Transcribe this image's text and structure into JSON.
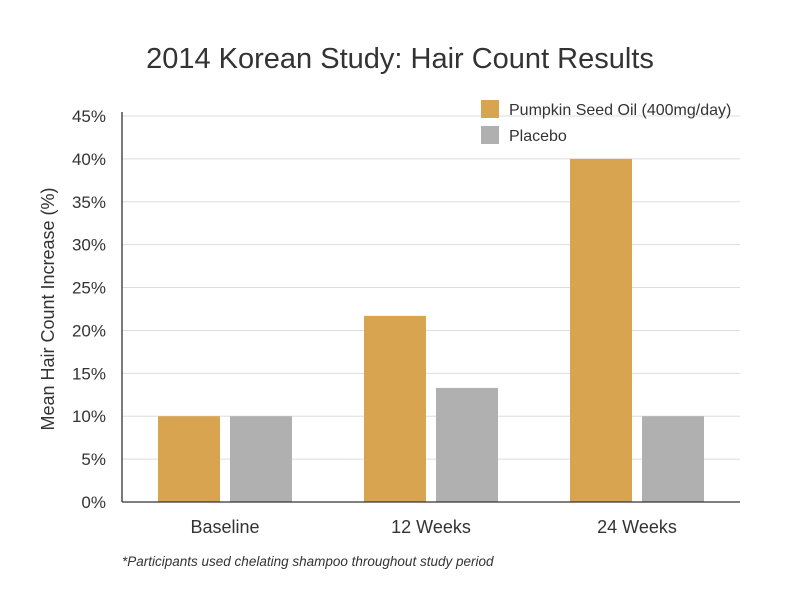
{
  "chart_data": {
    "type": "bar",
    "title": "2014 Korean Study: Hair Count Results",
    "xlabel": "",
    "ylabel": "Mean Hair Count Increase (%)",
    "categories": [
      "Baseline",
      "12 Weeks",
      "24 Weeks"
    ],
    "series": [
      {
        "name": "Pumpkin Seed Oil (400mg/day)",
        "values": [
          10,
          21.7,
          40
        ],
        "color": "#D9A44F"
      },
      {
        "name": "Placebo",
        "values": [
          10,
          13.3,
          10
        ],
        "color": "#B0B0B0"
      }
    ],
    "ylim": [
      0,
      45
    ],
    "yticks": [
      0,
      5,
      10,
      15,
      20,
      25,
      30,
      35,
      40,
      45
    ],
    "ytick_labels": [
      "0%",
      "5%",
      "10%",
      "15%",
      "20%",
      "25%",
      "30%",
      "35%",
      "40%",
      "45%"
    ],
    "grid": true,
    "legend_position": "top-right",
    "footnote": "*Participants used chelating shampoo throughout study period"
  }
}
